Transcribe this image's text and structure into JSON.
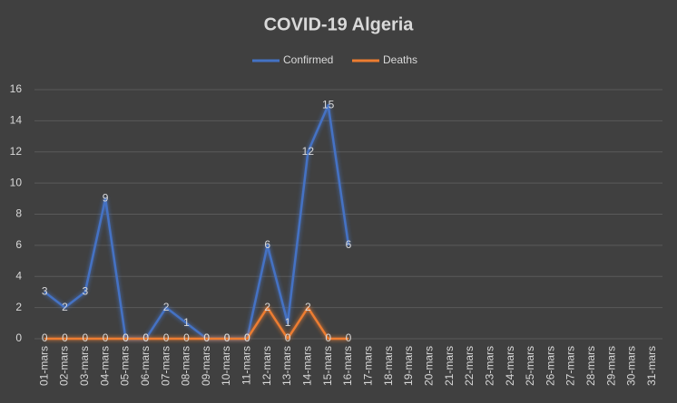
{
  "chart_data": {
    "type": "line",
    "title": "COVID-19 Algeria",
    "categories": [
      "01-mars",
      "02-mars",
      "03-mars",
      "04-mars",
      "05-mars",
      "06-mars",
      "07-mars",
      "08-mars",
      "09-mars",
      "10-mars",
      "11-mars",
      "12-mars",
      "13-mars",
      "14-mars",
      "15-mars",
      "16-mars",
      "17-mars",
      "18-mars",
      "19-mars",
      "20-mars",
      "21-mars",
      "22-mars",
      "23-mars",
      "24-mars",
      "25-mars",
      "26-mars",
      "27-mars",
      "28-mars",
      "29-mars",
      "30-mars",
      "31-mars"
    ],
    "series": [
      {
        "name": "Confirmed",
        "color": "#4472c4",
        "values": [
          3,
          2,
          3,
          9,
          0,
          0,
          2,
          1,
          0,
          0,
          0,
          6,
          1,
          12,
          15,
          6,
          null,
          null,
          null,
          null,
          null,
          null,
          null,
          null,
          null,
          null,
          null,
          null,
          null,
          null,
          null
        ]
      },
      {
        "name": "Deaths",
        "color": "#ed7d31",
        "values": [
          0,
          0,
          0,
          0,
          0,
          0,
          0,
          0,
          0,
          0,
          0,
          2,
          0,
          2,
          0,
          0,
          null,
          null,
          null,
          null,
          null,
          null,
          null,
          null,
          null,
          null,
          null,
          null,
          null,
          null,
          null
        ]
      }
    ],
    "ylim": [
      0,
      16
    ],
    "yticks": [
      0,
      2,
      4,
      6,
      8,
      10,
      12,
      14,
      16
    ],
    "grid": true,
    "legend": "top"
  }
}
